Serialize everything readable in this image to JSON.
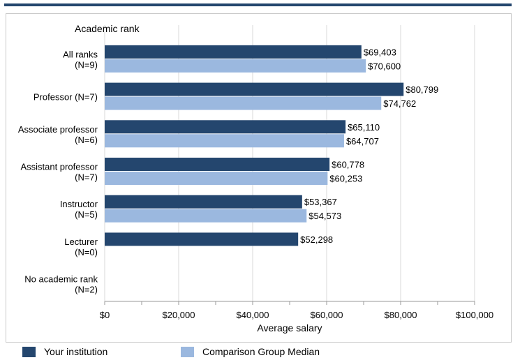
{
  "chart_data": {
    "type": "bar",
    "orientation": "horizontal",
    "yaxis_title": "Academic rank",
    "xlabel": "Average salary",
    "xlim": [
      0,
      100000
    ],
    "x_ticks": [
      "$0",
      "$20,000",
      "$40,000",
      "$60,000",
      "$80,000",
      "$100,000"
    ],
    "grid": true,
    "categories": [
      [
        "All ranks",
        "(N=9)"
      ],
      [
        "Professor (N=7)"
      ],
      [
        "Associate professor",
        "(N=6)"
      ],
      [
        "Assistant professor",
        "(N=7)"
      ],
      [
        "Instructor",
        "(N=5)"
      ],
      [
        "Lecturer",
        "(N=0)"
      ],
      [
        "No academic rank",
        "(N=2)"
      ]
    ],
    "series": [
      {
        "name": "Your institution",
        "color": "#24466e",
        "values": [
          69403,
          80799,
          65110,
          60778,
          53367,
          52298,
          null
        ],
        "labels": [
          "$69,403",
          "$80,799",
          "$65,110",
          "$60,778",
          "$53,367",
          "$52,298",
          ""
        ]
      },
      {
        "name": "Comparison Group Median",
        "color": "#9bb8df",
        "values": [
          70600,
          74762,
          64707,
          60253,
          54573,
          null,
          null
        ],
        "labels": [
          "$70,600",
          "$74,762",
          "$64,707",
          "$60,253",
          "$54,573",
          "",
          ""
        ]
      }
    ],
    "legend_position": "bottom"
  }
}
